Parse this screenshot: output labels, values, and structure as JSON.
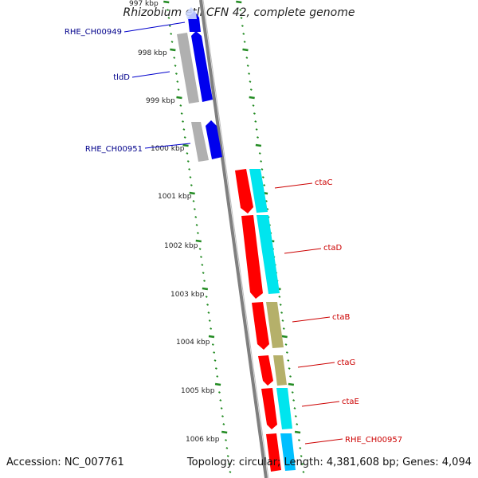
{
  "title": "Rhizobium etli CFN 42, complete genome",
  "footer": {
    "accession": "Accession: NC_007761",
    "topology": "Topology: circular; Length: 4,381,608 bp; Genes: 4,094"
  },
  "colors": {
    "plus_strand_gene": "#0000ee",
    "minus_strand_gene": "#ff0000",
    "plus_label": "#00008b",
    "minus_label": "#cc0000",
    "tick": "#228b22",
    "backbone": "#7f7f7f"
  },
  "axis_labels": [
    "997 kbp",
    "998 kbp",
    "999 kbp",
    "1000 kbp",
    "1001 kbp",
    "1002 kbp",
    "1003 kbp",
    "1004 kbp",
    "1005 kbp",
    "1006 kbp"
  ],
  "plus_genes": [
    {
      "label": "RHE_CH00949"
    },
    {
      "label": "tldD"
    },
    {
      "label": "RHE_CH00951"
    }
  ],
  "minus_genes": [
    {
      "label": "ctaC"
    },
    {
      "label": "ctaD"
    },
    {
      "label": "ctaB"
    },
    {
      "label": "ctaG"
    },
    {
      "label": "ctaE"
    },
    {
      "label": "RHE_CH00957"
    }
  ]
}
